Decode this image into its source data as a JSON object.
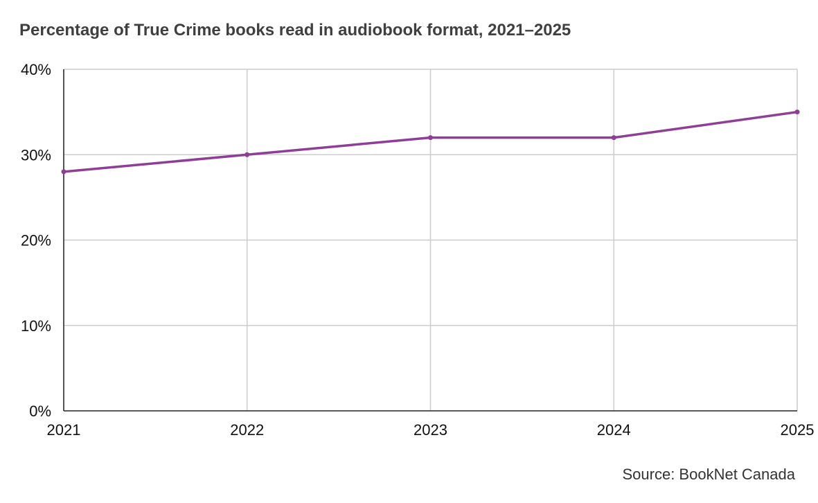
{
  "chart_data": {
    "type": "line",
    "title": "Percentage of True Crime books read in audiobook format, 2021–2025",
    "xlabel": "",
    "ylabel": "",
    "categories": [
      "2021",
      "2022",
      "2023",
      "2024",
      "2025"
    ],
    "series": [
      {
        "values": [
          28,
          30,
          32,
          32,
          35
        ]
      }
    ],
    "ylim": [
      0,
      40
    ],
    "yticks": [
      0,
      10,
      20,
      30,
      40
    ],
    "ytick_labels": [
      "0%",
      "10%",
      "20%",
      "30%",
      "40%"
    ],
    "grid": true,
    "line_color": "#8e3e97",
    "grid_color": "#cccccc",
    "axis_color": "#222222"
  },
  "footer": {
    "source": "Source: BookNet Canada"
  }
}
